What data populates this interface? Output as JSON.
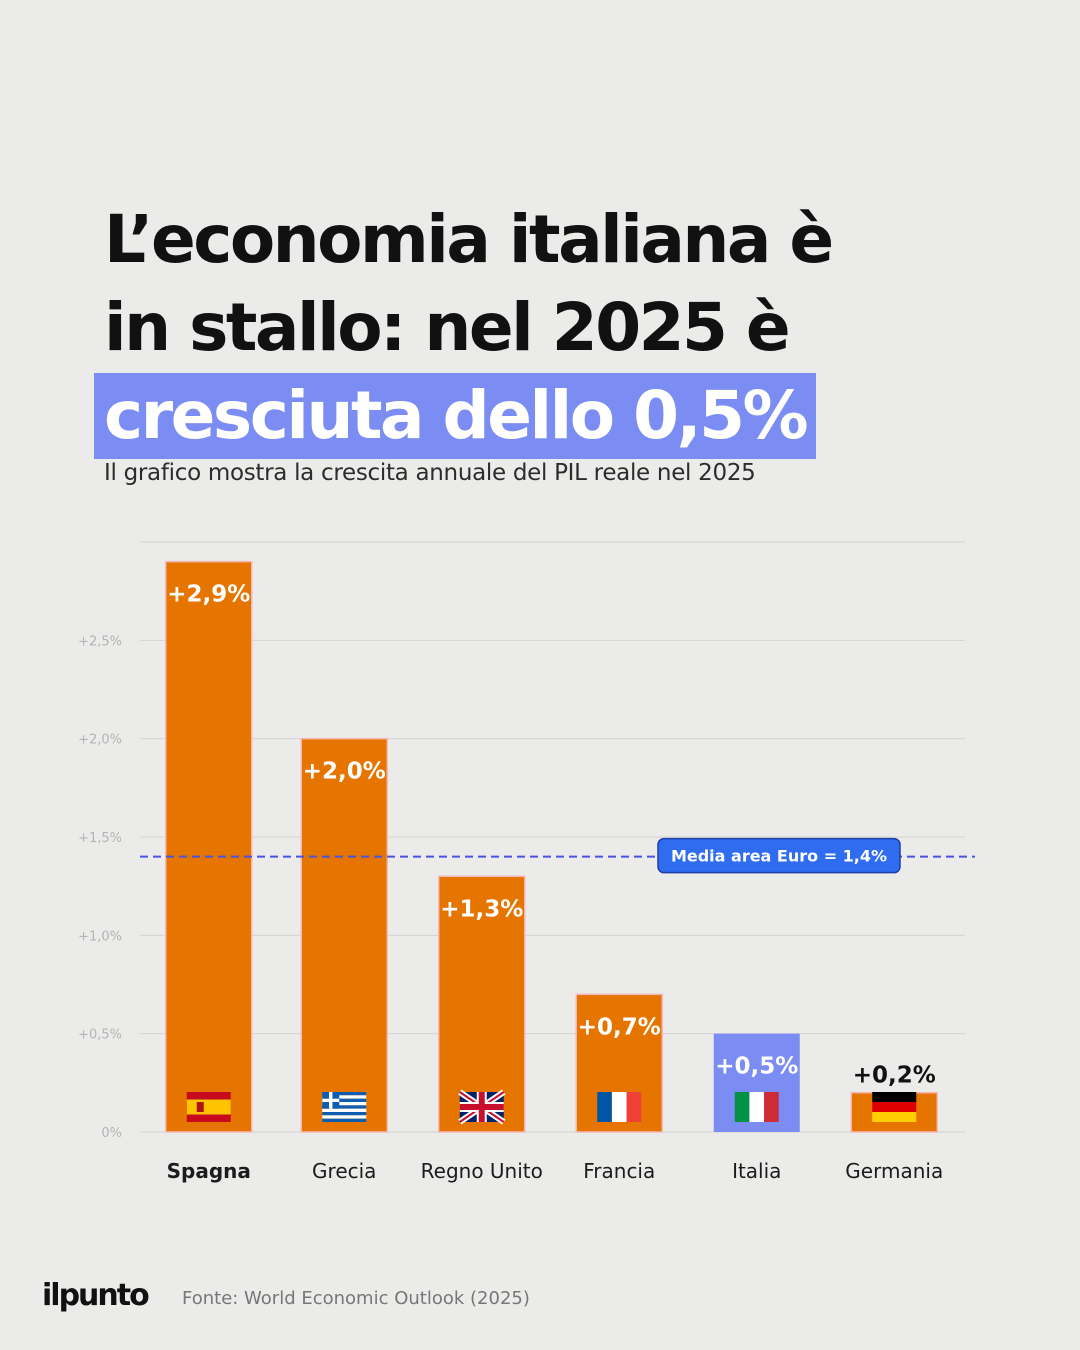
{
  "headline": {
    "line1": "L’economia italiana è",
    "line2": "in stallo: nel 2025 è",
    "highlight": "cresciuta dello 0,5%"
  },
  "subtitle": "Il grafico mostra la crescita annuale del PIL reale nel 2025",
  "chart_data": {
    "type": "bar",
    "categories": [
      "Spagna",
      "Grecia",
      "Regno Unito",
      "Francia",
      "Italia",
      "Germania"
    ],
    "values": [
      2.9,
      2.0,
      1.3,
      0.7,
      0.5,
      0.2
    ],
    "value_labels": [
      "+2,9%",
      "+2,0%",
      "+1,3%",
      "+0,7%",
      "+0,5%",
      "+0,2%"
    ],
    "flags": [
      "flag-spain-icon",
      "flag-greece-icon",
      "flag-uk-icon",
      "flag-france-icon",
      "flag-italy-icon",
      "flag-germany-icon"
    ],
    "y_ticks": [
      0,
      0.5,
      1.0,
      1.5,
      2.0,
      2.5
    ],
    "y_tick_labels": [
      "0%",
      "+0,5%",
      "+1,0%",
      "+1,5%",
      "+2,0%",
      "+2,5%"
    ],
    "ylim": [
      0,
      3.0
    ],
    "reference_line": {
      "value": 1.4,
      "label": "Media area Euro = 1,4%"
    },
    "grid": true,
    "bar_color": "#e67500",
    "highlight_color": "#7b8df2",
    "highlight_category": "Italia",
    "bold_category": "Spagna"
  },
  "logo": "ilpunto",
  "source": "Fonte: World Economic Outlook (2025)"
}
